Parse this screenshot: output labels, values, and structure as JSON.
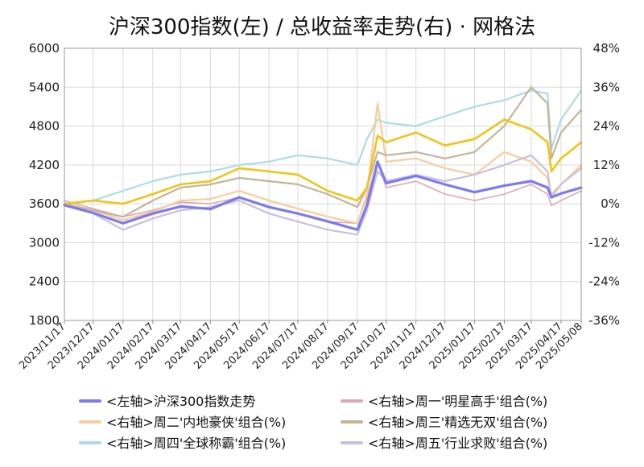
{
  "chart_data": {
    "type": "line",
    "title": "沪深300指数(左)  /  总收益率走势(右) · 网格法",
    "grid": true,
    "legend_position": "bottom",
    "left_axis": {
      "range": [
        1800,
        6000
      ],
      "ticks": [
        "1800",
        "2400",
        "3000",
        "3600",
        "4200",
        "4800",
        "5400",
        "6000"
      ],
      "tick_values": [
        1800,
        2400,
        3000,
        3600,
        4200,
        4800,
        5400,
        6000
      ]
    },
    "right_axis": {
      "range": [
        -36,
        48
      ],
      "unit": "%",
      "ticks": [
        "-36%",
        "-24%",
        "-12%",
        "0%",
        "12%",
        "24%",
        "36%",
        "48%"
      ],
      "tick_values": [
        -36,
        -24,
        -12,
        0,
        12,
        24,
        36,
        48
      ],
      "negative_color": "#22cc22"
    },
    "x_ticks": [
      "2023/11/17",
      "2023/12/17",
      "2024/01/17",
      "2024/02/17",
      "2024/03/17",
      "2024/04/17",
      "2024/05/17",
      "2024/06/17",
      "2024/07/17",
      "2024/08/17",
      "2024/09/17",
      "2024/10/17",
      "2024/11/17",
      "2024/12/17",
      "2025/01/17",
      "2025/02/17",
      "2025/03/17",
      "2025/04/17",
      "2025/05/08"
    ],
    "last_tick_color": "#ee2222",
    "x": [
      "2023/11/17",
      "2023/12/17",
      "2024/01/17",
      "2024/02/17",
      "2024/03/17",
      "2024/04/17",
      "2024/05/17",
      "2024/06/17",
      "2024/07/17",
      "2024/08/17",
      "2024/09/17",
      "2024/09/27",
      "2024/10/08",
      "2024/10/17",
      "2024/11/17",
      "2024/12/17",
      "2025/01/17",
      "2025/02/17",
      "2025/03/17",
      "2025/04/03",
      "2025/04/07",
      "2025/04/17",
      "2025/05/08"
    ],
    "series": [
      {
        "name": "<左轴>沪深300指数走势",
        "axis": "left",
        "color": "#7b7bf0",
        "width": 3.2,
        "values": [
          3580,
          3460,
          3300,
          3450,
          3560,
          3520,
          3700,
          3550,
          3450,
          3330,
          3200,
          3580,
          4250,
          3920,
          4030,
          3900,
          3780,
          3880,
          3950,
          3850,
          3700,
          3760,
          3850
        ]
      },
      {
        "name": "<右轴>周一'明星高手'组合(%)",
        "axis": "right",
        "color": "#e0a8ae",
        "width": 1.6,
        "values": [
          1,
          -1.5,
          -4,
          -2,
          0.5,
          0,
          2,
          -1,
          -3,
          -5.5,
          -6,
          2,
          13,
          5,
          7,
          3,
          1,
          3,
          6,
          3,
          -0.5,
          1,
          4
        ]
      },
      {
        "name": "<右轴>周二'内地豪侠'组合(%)",
        "axis": "right",
        "color": "#f8cc9c",
        "width": 2.2,
        "values": [
          0,
          -2,
          -5,
          -2.5,
          1,
          1.5,
          4,
          1,
          -1.5,
          -4,
          -6,
          3,
          31,
          13,
          14,
          11,
          9,
          16,
          13,
          8,
          3,
          6,
          12
        ]
      },
      {
        "name": "<右轴>周三'精选无双'组合(%)",
        "axis": "right",
        "color": "#c4b49a",
        "width": 2.2,
        "values": [
          0,
          -2,
          -4,
          1,
          5,
          6,
          8,
          7,
          6,
          3,
          -1,
          5,
          16,
          15,
          16,
          14,
          16,
          24,
          36,
          31,
          14,
          22,
          29
        ]
      },
      {
        "name": "<右轴>周四'全球称霸'组合(%)",
        "axis": "right",
        "color": "#acdce6",
        "width": 2.2,
        "values": [
          0,
          1,
          4,
          7,
          9,
          10,
          12,
          13,
          15,
          14,
          12,
          20,
          26,
          25,
          24,
          27,
          30,
          32,
          35,
          34,
          17,
          26,
          35
        ]
      },
      {
        "name": "<右轴>周五'行业求败'组合(%)",
        "axis": "right",
        "color": "#c8c0dc",
        "width": 2.2,
        "values": [
          0,
          -3,
          -8,
          -4.5,
          -2,
          -1,
          1,
          -3,
          -5.5,
          -8,
          -9.5,
          -2,
          10,
          7,
          9,
          7,
          9,
          12,
          15,
          10,
          2,
          6,
          11
        ]
      },
      {
        "name": "<右轴>周二'内地豪侠'组合(%) ",
        "axis": "right",
        "color": "#f0c418",
        "width": 2.6,
        "legend": false,
        "values": [
          0,
          1,
          0,
          3,
          6,
          7,
          11,
          10,
          9,
          4,
          1,
          5,
          21,
          19,
          22,
          18,
          20,
          26,
          23,
          19,
          10,
          14,
          19
        ]
      }
    ]
  }
}
